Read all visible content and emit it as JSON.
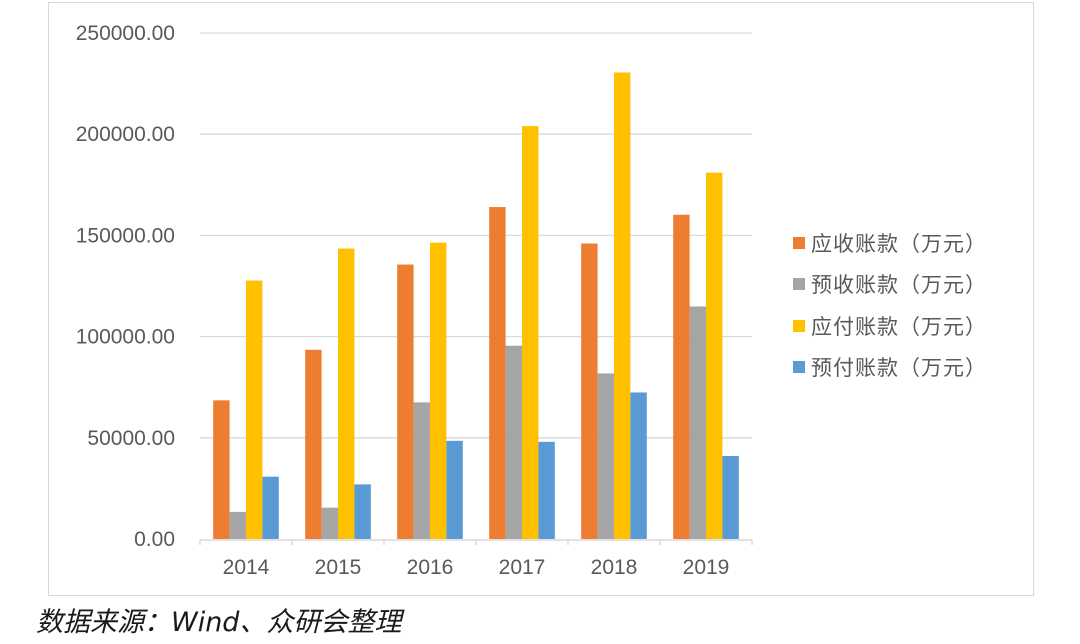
{
  "chart_data": {
    "type": "bar",
    "title": "",
    "xlabel": "",
    "ylabel": "",
    "categories": [
      "2014",
      "2015",
      "2016",
      "2017",
      "2018",
      "2019"
    ],
    "series": [
      {
        "name": "应收账款（万元）",
        "color": "#ED7D31",
        "values": [
          68500,
          93500,
          135600,
          164000,
          146000,
          160200
        ]
      },
      {
        "name": "预收账款（万元）",
        "color": "#A5A5A5",
        "values": [
          13400,
          15500,
          67500,
          95500,
          81800,
          114900
        ]
      },
      {
        "name": "应付账款（万元）",
        "color": "#FFC000",
        "values": [
          127700,
          143500,
          146400,
          204000,
          230500,
          181000
        ]
      },
      {
        "name": "预付账款（万元）",
        "color": "#5B9BD5",
        "values": [
          30800,
          27000,
          48500,
          48000,
          72400,
          41000
        ]
      }
    ],
    "ylim": [
      0,
      250000
    ],
    "yticks": [
      "0.00",
      "50000.00",
      "100000.00",
      "150000.00",
      "200000.00",
      "250000.00"
    ],
    "grid": true,
    "legend_position": "right"
  },
  "legend": {
    "items": [
      {
        "label": "应收账款（万元）",
        "color": "#ED7D31"
      },
      {
        "label": "预收账款（万元）",
        "color": "#A5A5A5"
      },
      {
        "label": "应付账款（万元）",
        "color": "#FFC000"
      },
      {
        "label": "预付账款（万元）",
        "color": "#5B9BD5"
      }
    ]
  },
  "source_note": "数据来源：Wind、众研会整理"
}
